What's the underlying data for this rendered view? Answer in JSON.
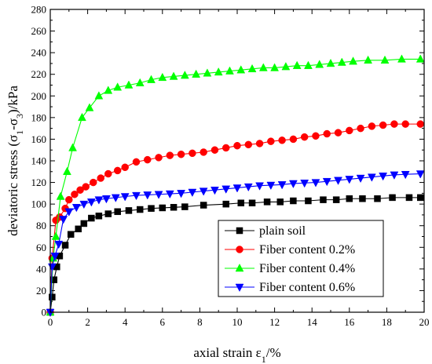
{
  "chart_data": {
    "type": "line",
    "xlabel": "axial strain ε",
    "xlabel_sub": "1",
    "xlabel_unit": "/%",
    "ylabel_pre": "deviatoric stress (σ",
    "ylabel_sub1": "1",
    "ylabel_mid": "-σ",
    "ylabel_sub2": "3",
    "ylabel_post": ")/kPa",
    "xlim": [
      0,
      20
    ],
    "ylim": [
      0,
      280
    ],
    "xticks": [
      "0",
      "2",
      "4",
      "6",
      "8",
      "10",
      "12",
      "14",
      "16",
      "18",
      "20"
    ],
    "yticks": [
      "0",
      "20",
      "40",
      "60",
      "80",
      "100",
      "120",
      "140",
      "160",
      "180",
      "200",
      "220",
      "240",
      "260",
      "280"
    ],
    "legend_position": "bottom-right",
    "series": [
      {
        "name": "plain soil",
        "color": "#000000",
        "marker": "square",
        "x": [
          0,
          0.1,
          0.2,
          0.35,
          0.5,
          0.8,
          1.1,
          1.5,
          1.8,
          2.2,
          2.6,
          3.1,
          3.6,
          4.2,
          4.8,
          5.4,
          6.0,
          6.6,
          7.2,
          8.2,
          9.4,
          10.2,
          10.8,
          11.6,
          12.3,
          13.0,
          13.8,
          14.6,
          15.3,
          16.0,
          16.7,
          17.5,
          18.3,
          19.2,
          19.8
        ],
        "y": [
          0,
          14,
          30,
          42,
          52,
          62,
          72,
          77,
          82,
          87,
          89,
          91,
          93,
          94,
          95,
          96,
          96.5,
          97,
          97.5,
          99,
          100,
          101,
          101,
          102,
          102,
          103,
          103,
          104,
          104,
          105,
          105,
          105,
          106,
          106,
          106
        ]
      },
      {
        "name": "Fiber content 0.2%",
        "color": "#ff0000",
        "marker": "circle",
        "x": [
          0,
          0.1,
          0.3,
          0.5,
          0.8,
          1.0,
          1.3,
          1.6,
          1.9,
          2.3,
          2.7,
          3.1,
          3.6,
          4.0,
          4.6,
          5.2,
          5.8,
          6.4,
          7.0,
          7.6,
          8.2,
          8.8,
          9.4,
          10.0,
          10.6,
          11.2,
          11.8,
          12.4,
          13.0,
          13.6,
          14.2,
          14.8,
          15.4,
          16.0,
          16.6,
          17.2,
          17.8,
          18.4,
          19.0,
          19.8
        ],
        "y": [
          0,
          50,
          85,
          88,
          96,
          104,
          109,
          113,
          116,
          120,
          124,
          128,
          131,
          134,
          139,
          141,
          143,
          145,
          146,
          147,
          148,
          150,
          152,
          154,
          155,
          156,
          158,
          159,
          160,
          162,
          163,
          165,
          166,
          168,
          170,
          172,
          173,
          174,
          174,
          174
        ]
      },
      {
        "name": "Fiber content 0.4%",
        "color": "#00ff00",
        "marker": "triangle-up",
        "x": [
          0,
          0.15,
          0.3,
          0.55,
          0.9,
          1.2,
          1.7,
          2.1,
          2.6,
          3.1,
          3.6,
          4.2,
          4.8,
          5.4,
          6.0,
          6.6,
          7.2,
          7.8,
          8.4,
          9.0,
          9.6,
          10.2,
          10.8,
          11.4,
          12.0,
          12.6,
          13.2,
          13.8,
          14.4,
          15.0,
          15.6,
          16.2,
          17.0,
          17.9,
          18.8,
          19.8
        ],
        "y": [
          0,
          50,
          70,
          107,
          130,
          152,
          180,
          189,
          200,
          205,
          208,
          210,
          212,
          215,
          217,
          218,
          219,
          220,
          221,
          222,
          223,
          224,
          225,
          226,
          226,
          227,
          228,
          228,
          229,
          230,
          231,
          232,
          233,
          233,
          234,
          234
        ]
      },
      {
        "name": "Fiber content 0.6%",
        "color": "#0000ff",
        "marker": "triangle-down",
        "x": [
          0,
          0.1,
          0.25,
          0.45,
          0.7,
          1.0,
          1.4,
          1.8,
          2.2,
          2.6,
          3.0,
          3.5,
          4.0,
          4.6,
          5.2,
          5.8,
          6.4,
          7.0,
          7.6,
          8.2,
          8.8,
          9.4,
          10.0,
          10.6,
          11.2,
          11.8,
          12.4,
          13.0,
          13.6,
          14.2,
          14.8,
          15.4,
          16.0,
          16.6,
          17.2,
          17.8,
          18.4,
          19.0,
          19.8
        ],
        "y": [
          0,
          42,
          52,
          63,
          86,
          93,
          97,
          100,
          102,
          104,
          105,
          106,
          107,
          108,
          108.5,
          109,
          109.5,
          110,
          111,
          112,
          113,
          114,
          115,
          116,
          117,
          117.5,
          118,
          119,
          119.5,
          120,
          121,
          122,
          123,
          124,
          125,
          126,
          127,
          127.5,
          128
        ]
      }
    ]
  }
}
